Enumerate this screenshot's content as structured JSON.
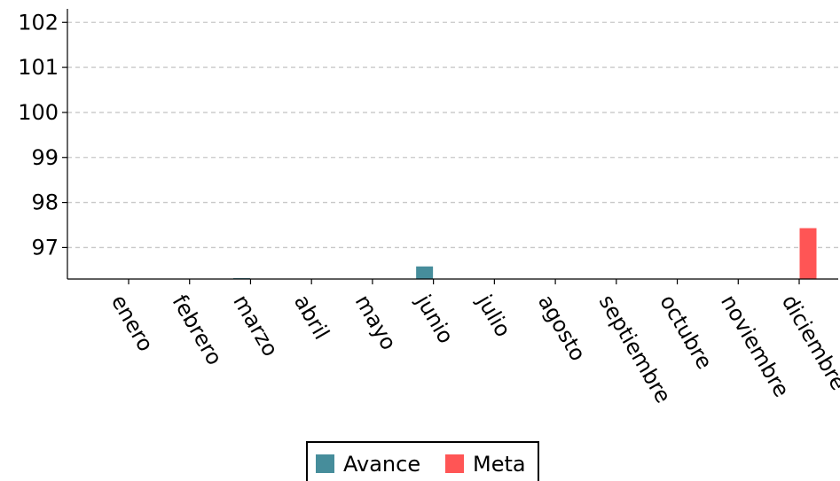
{
  "chart_data": {
    "type": "bar",
    "categories": [
      "enero",
      "febrero",
      "marzo",
      "abril",
      "mayo",
      "junio",
      "julio",
      "agosto",
      "septiembre",
      "octubre",
      "noviembre",
      "diciembre"
    ],
    "series": [
      {
        "name": "Avance",
        "color": "#468d9b",
        "values": [
          null,
          null,
          96.31,
          null,
          null,
          96.58,
          null,
          null,
          null,
          null,
          null,
          null
        ]
      },
      {
        "name": "Meta",
        "color": "#ff5555",
        "values": [
          null,
          null,
          null,
          null,
          null,
          null,
          null,
          null,
          null,
          null,
          null,
          97.43
        ]
      }
    ],
    "yticks": [
      "97",
      "98",
      "99",
      "100",
      "101",
      "102"
    ],
    "ylim": [
      96.3,
      102.3
    ],
    "grid": true,
    "legend_position": "bottom-center",
    "xlabel": "",
    "ylabel": "",
    "title": ""
  }
}
